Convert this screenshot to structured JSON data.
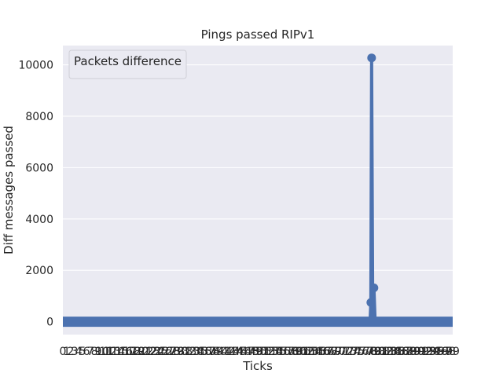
{
  "chart_data": {
    "type": "line",
    "title": "Pings passed RIPv1",
    "xlabel": "Ticks",
    "ylabel": "Diff messages passed",
    "legend_title": "Packets difference",
    "legend_placement": "top-left",
    "grid": true,
    "ylim": [
      -500,
      10750
    ],
    "yticks": [
      0,
      2000,
      4000,
      6000,
      8000,
      10000
    ],
    "x_tick_count": 100,
    "series": [
      {
        "color": "#4c72b0",
        "points": [
          {
            "x": 0,
            "y": 0
          },
          {
            "x": 78.8,
            "y": 0
          },
          {
            "x": 79,
            "y": 750
          },
          {
            "x": 79.2,
            "y": 10270
          },
          {
            "x": 79.5,
            "y": 0
          },
          {
            "x": 79.8,
            "y": 1320
          },
          {
            "x": 80.1,
            "y": 0
          },
          {
            "x": 100,
            "y": 0
          }
        ]
      }
    ]
  },
  "colors": {
    "plot_background": "#eaeaf2",
    "grid": "#ffffff",
    "series": "#4c72b0"
  }
}
